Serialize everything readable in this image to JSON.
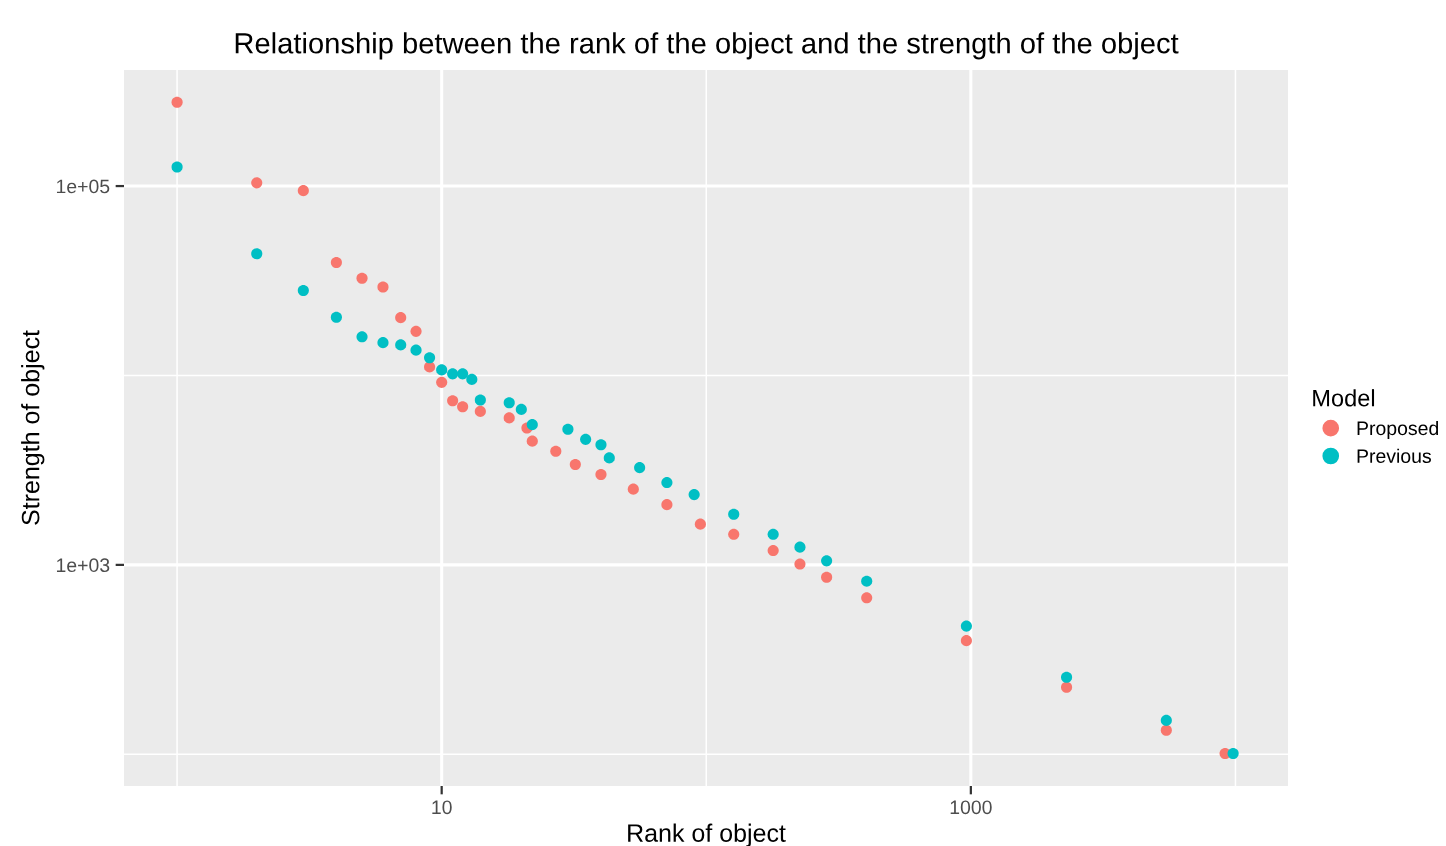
{
  "chart_data": {
    "type": "scatter",
    "title": "Relationship between the rank of the object and the strength of the object",
    "xlabel": "Rank of object",
    "ylabel": "Strength of object",
    "legend_title": "Model",
    "log": "xy",
    "grid": true,
    "legend": "right",
    "marker": "circle",
    "xlim": [
      0.63,
      15800
    ],
    "ylim": [
      68,
      410000
    ],
    "xticks": [
      {
        "value": 1,
        "label": null
      },
      10,
      {
        "value": 100,
        "label": null
      },
      1000,
      {
        "value": 10000,
        "label": null
      }
    ],
    "yticks": [
      {
        "value": 100,
        "label": null
      },
      {
        "value": 1000,
        "label": "1e+03"
      },
      {
        "value": 10000,
        "label": null
      },
      {
        "value": 100000,
        "label": "1e+05"
      }
    ],
    "series": [
      {
        "name": "Proposed",
        "color": "#f8766d",
        "x": [
          1,
          2,
          3,
          4,
          5,
          6,
          7,
          8,
          9,
          10,
          11,
          12,
          14,
          18,
          21,
          22,
          27,
          32,
          40,
          53,
          71,
          95,
          127,
          179,
          226,
          285,
          404,
          962,
          2300,
          5480,
          9140
        ],
        "values": [
          277000,
          104000,
          94600,
          39500,
          32600,
          29300,
          20200,
          17100,
          11100,
          9200,
          7350,
          6840,
          6460,
          5970,
          5280,
          4500,
          3980,
          3390,
          3000,
          2510,
          2080,
          1640,
          1450,
          1190,
          1010,
          860,
          670,
          398,
          226,
          134,
          101
        ]
      },
      {
        "name": "Previous",
        "color": "#00bfc4",
        "x": [
          1,
          2,
          3,
          4,
          5,
          6,
          7,
          8,
          9,
          10,
          11,
          12,
          13,
          14,
          18,
          20,
          22,
          30,
          35,
          40,
          43,
          56,
          71,
          90,
          127,
          179,
          226,
          285,
          404,
          962,
          2300,
          5480,
          9800
        ],
        "values": [
          126000,
          43900,
          28100,
          20300,
          16000,
          14900,
          14500,
          13600,
          12400,
          10700,
          10200,
          10200,
          9530,
          7420,
          7180,
          6620,
          5500,
          5200,
          4600,
          4310,
          3670,
          3260,
          2720,
          2350,
          1850,
          1450,
          1240,
          1050,
          820,
          475,
          255,
          151,
          101
        ]
      }
    ]
  }
}
